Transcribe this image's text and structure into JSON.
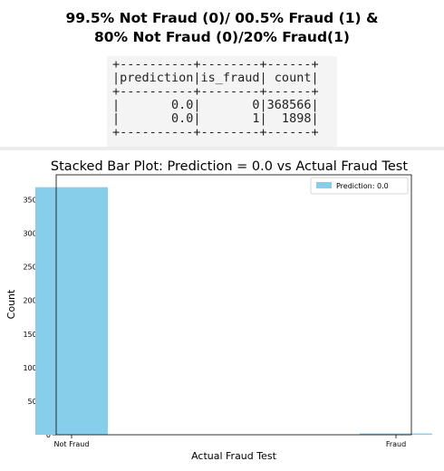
{
  "header": {
    "line1": "99.5% Not Fraud (0)/ 00.5% Fraud (1) &",
    "line2": "80% Not Fraud (0)/20% Fraud(1)"
  },
  "console_table": {
    "border": "+----------+--------+------+",
    "columns": [
      "prediction",
      "is_fraud",
      "count"
    ],
    "rows": [
      [
        "0.0",
        "0",
        "368566"
      ],
      [
        "0.0",
        "1",
        "1898"
      ]
    ]
  },
  "chart_data": {
    "type": "bar",
    "title": "Stacked Bar Plot: Prediction = 0.0 vs Actual Fraud Test",
    "xlabel": "Actual Fraud Test",
    "ylabel": "Count",
    "categories": [
      "Not Fraud",
      "Fraud"
    ],
    "series": [
      {
        "name": "Prediction: 0.0",
        "values": [
          368566,
          1898
        ],
        "color": "#87ceeb"
      }
    ],
    "ylim": [
      0,
      387000
    ],
    "yticks": [
      0,
      50000,
      100000,
      150000,
      200000,
      250000,
      300000,
      350000
    ],
    "legend_position": "top-right",
    "grid": false
  }
}
